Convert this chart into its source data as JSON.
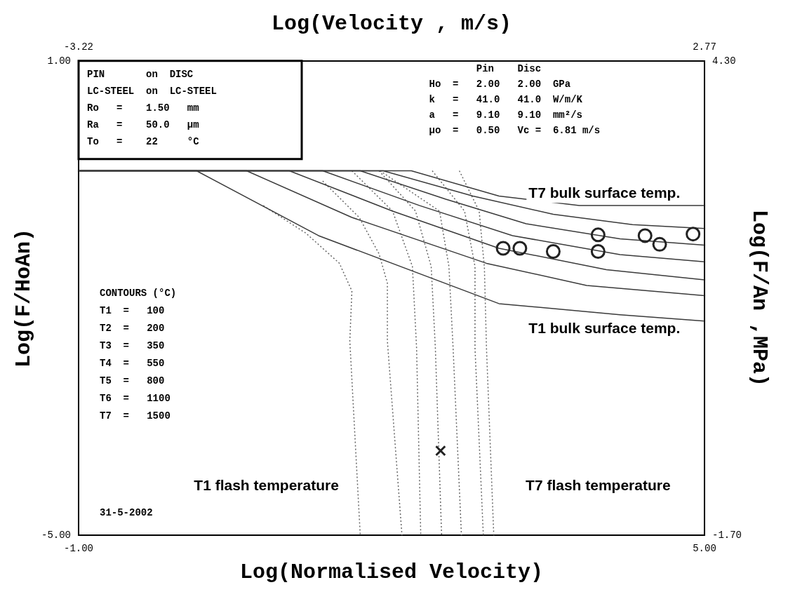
{
  "chart_data": {
    "type": "line",
    "xlabel": "Log(Normalised Velocity)",
    "x2label": "Log(Velocity , m/s)",
    "ylabel": "Log(F/HoAn)",
    "y2label": "Log(F/An ,MPa)",
    "xlim": [
      -1,
      5
    ],
    "xticks": [
      {
        "value": -1,
        "label": "-1.00"
      },
      {
        "value": 5,
        "label": "5.00"
      }
    ],
    "x2lim": [
      -3.22,
      2.77
    ],
    "x2ticks": [
      {
        "value": -3.22,
        "label": "-3.22"
      },
      {
        "value": 2.77,
        "label": "2.77"
      }
    ],
    "ylim": [
      -5,
      1
    ],
    "yticks": [
      {
        "value": -5,
        "label": "-5.00"
      },
      {
        "value": 1,
        "label": "1.00"
      }
    ],
    "y2lim": [
      -1.7,
      4.3
    ],
    "y2ticks": [
      {
        "value": -1.7,
        "label": "-1.70"
      },
      {
        "value": 4.3,
        "label": "4.30"
      }
    ],
    "grid": false,
    "legend": false,
    "series": [
      {
        "type": "line",
        "color": "#3a3a3a",
        "line_style": "solid",
        "marker": "none",
        "x": [
          -1,
          0.13,
          1.3,
          3.03,
          4.19,
          5
        ],
        "values": [
          -0.39,
          -0.39,
          -1.21,
          -2.07,
          -2.21,
          -2.29
        ]
      },
      {
        "type": "line",
        "color": "#3a3a3a",
        "line_style": "solid",
        "marker": "none",
        "x": [
          -1,
          0.61,
          1.62,
          2.91,
          3.87,
          5
        ],
        "values": [
          -0.39,
          -0.39,
          -0.98,
          -1.56,
          -1.84,
          -1.97
        ]
      },
      {
        "type": "line",
        "color": "#3a3a3a",
        "line_style": "solid",
        "marker": "none",
        "x": [
          -1,
          1.02,
          2.01,
          3.03,
          4.06,
          5
        ],
        "values": [
          -0.39,
          -0.39,
          -0.9,
          -1.37,
          -1.64,
          -1.77
        ]
      },
      {
        "type": "line",
        "color": "#3a3a3a",
        "line_style": "solid",
        "marker": "none",
        "x": [
          -1,
          1.34,
          2.27,
          3.16,
          4.19,
          5
        ],
        "values": [
          -0.39,
          -0.39,
          -0.83,
          -1.21,
          -1.45,
          -1.54
        ]
      },
      {
        "type": "line",
        "color": "#3a3a3a",
        "line_style": "solid",
        "marker": "none",
        "x": [
          -1,
          1.7,
          2.52,
          3.29,
          4.19,
          5
        ],
        "values": [
          -0.39,
          -0.39,
          -0.75,
          -1.06,
          -1.25,
          -1.33
        ]
      },
      {
        "type": "line",
        "color": "#3a3a3a",
        "line_style": "solid",
        "marker": "none",
        "x": [
          -1,
          1.92,
          2.78,
          3.55,
          4.31,
          5
        ],
        "values": [
          -0.39,
          -0.39,
          -0.71,
          -0.94,
          -1.07,
          -1.12
        ]
      },
      {
        "type": "line",
        "color": "#3a3a3a",
        "line_style": "solid",
        "marker": "none",
        "x": [
          -1,
          2.19,
          3.03,
          3.8,
          5
        ],
        "values": [
          -0.39,
          -0.39,
          -0.71,
          -0.83,
          -0.83
        ]
      },
      {
        "type": "line",
        "color": "#666666",
        "line_style": "dotted",
        "marker": "none",
        "x": [
          0.77,
          1.18,
          1.5,
          1.62,
          1.6,
          1.7
        ],
        "values": [
          -0.83,
          -1.18,
          -1.56,
          -1.91,
          -2.54,
          -5
        ]
      },
      {
        "type": "line",
        "color": "#666666",
        "line_style": "dotted",
        "marker": "none",
        "x": [
          1.34,
          1.69,
          1.88,
          1.96,
          1.96,
          2.1
        ],
        "values": [
          -0.52,
          -0.98,
          -1.44,
          -1.81,
          -2.54,
          -5
        ]
      },
      {
        "type": "line",
        "color": "#666666",
        "line_style": "dotted",
        "marker": "none",
        "x": [
          1.62,
          2.01,
          2.2,
          2.24,
          2.28
        ],
        "values": [
          -0.39,
          -0.9,
          -1.6,
          -2.63,
          -5
        ]
      },
      {
        "type": "line",
        "color": "#666666",
        "line_style": "dotted",
        "marker": "none",
        "x": [
          1.88,
          2.23,
          2.38,
          2.42,
          2.48
        ],
        "values": [
          -0.39,
          -0.9,
          -1.6,
          -2.63,
          -5
        ]
      },
      {
        "type": "line",
        "color": "#666666",
        "line_style": "dotted",
        "marker": "none",
        "x": [
          1.89,
          2.46,
          2.55,
          2.59,
          2.67
        ],
        "values": [
          -0.39,
          -0.9,
          -1.6,
          -2.63,
          -5
        ]
      },
      {
        "type": "line",
        "color": "#666666",
        "line_style": "dotted",
        "marker": "none",
        "x": [
          2.39,
          2.7,
          2.8,
          2.8,
          2.88
        ],
        "values": [
          -0.39,
          -0.9,
          -1.6,
          -2.63,
          -5
        ]
      },
      {
        "type": "line",
        "color": "#666666",
        "line_style": "dotted",
        "marker": "none",
        "x": [
          2.65,
          2.84,
          2.89,
          2.91,
          2.98
        ],
        "values": [
          -0.39,
          -0.9,
          -1.61,
          -2.63,
          -5
        ]
      },
      {
        "type": "scatter",
        "color": "#222222",
        "marker": "circle",
        "x": [
          3.07,
          3.23,
          3.55,
          3.98,
          3.98,
          4.43,
          4.57,
          4.89
        ],
        "values": [
          -1.37,
          -1.37,
          -1.41,
          -1.2,
          -1.41,
          -1.21,
          -1.32,
          -1.19
        ]
      },
      {
        "type": "scatter",
        "color": "#222222",
        "marker": "cross",
        "x": [
          2.47
        ],
        "values": [
          -3.93
        ]
      }
    ],
    "annotations": [
      "PIN       on  DISC",
      "LC-STEEL  on  LC-STEEL",
      "Ro   =    1.50   mm",
      "Ra   =    50.0   µm",
      "To   =    22     °C",
      "        Pin    Disc",
      "Ho  =   2.00   2.00  GPa",
      "k   =   41.0   41.0  W/m/K",
      "a   =   9.10   9.10  mm²/s",
      "µo  =   0.50   Vc =  6.81 m/s",
      "CONTOURS (°C)",
      "T1  =   100",
      "T2  =   200",
      "T3  =   350",
      "T4  =   550",
      "T5  =   800",
      "T6  =   1100",
      "T7  =   1500",
      "31-5-2002",
      "T7 bulk surface temp.",
      "T1 bulk surface temp.",
      "T1 flash temperature",
      "T7 flash temperature"
    ]
  }
}
